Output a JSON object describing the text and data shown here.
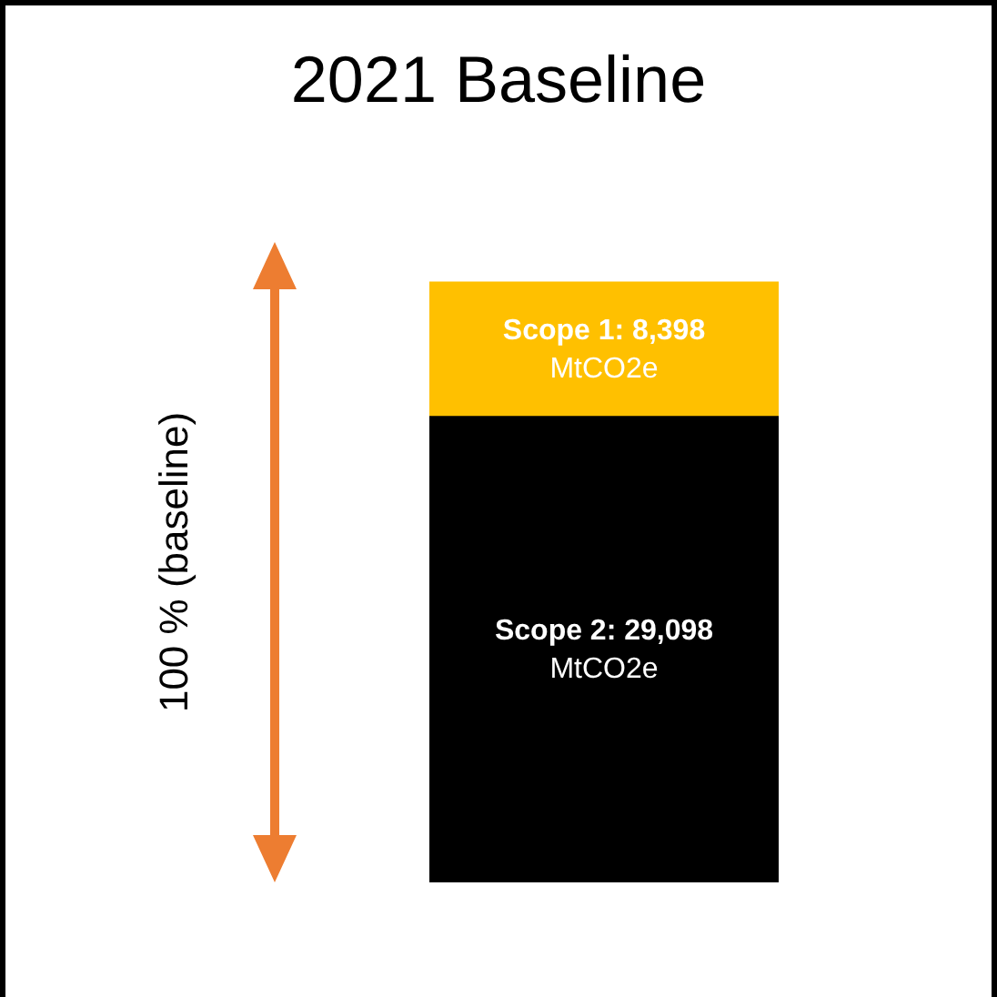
{
  "chart_data": {
    "type": "bar",
    "title": "2021 Baseline",
    "annotations": [
      "100 % (baseline)"
    ],
    "stacked": true,
    "categories": [
      null
    ],
    "series": [
      {
        "color": "#000000",
        "values": [
          29098
        ],
        "value_labels": [
          "Scope 2: 29,098 MtCO2e"
        ]
      },
      {
        "color": "#ffc000",
        "values": [
          8398
        ],
        "value_labels": [
          "Scope 1: 8,398 MtCO2e"
        ]
      }
    ],
    "legend": false,
    "tick_labels": false
  }
}
